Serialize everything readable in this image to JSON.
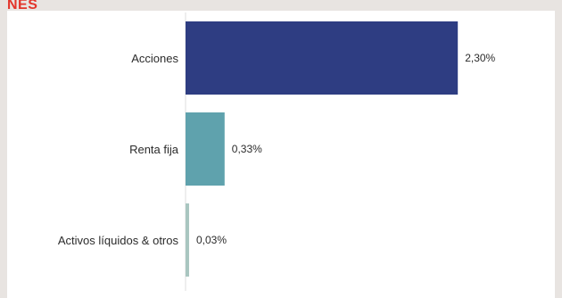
{
  "header": {
    "label": "NES"
  },
  "chart_data": {
    "type": "bar",
    "orientation": "horizontal",
    "title": "",
    "xlabel": "",
    "ylabel": "",
    "categories": [
      "Acciones",
      "Renta fija",
      "Activos líquidos & otros"
    ],
    "values": [
      2.3,
      0.33,
      0.03
    ],
    "value_labels": [
      "2,30%",
      "0,33%",
      "0,03%"
    ],
    "colors": [
      "#2e3d82",
      "#5fa2ad",
      "#a9c6c0"
    ],
    "xlim": [
      0,
      2.6
    ],
    "grid": false,
    "legend": "none"
  }
}
